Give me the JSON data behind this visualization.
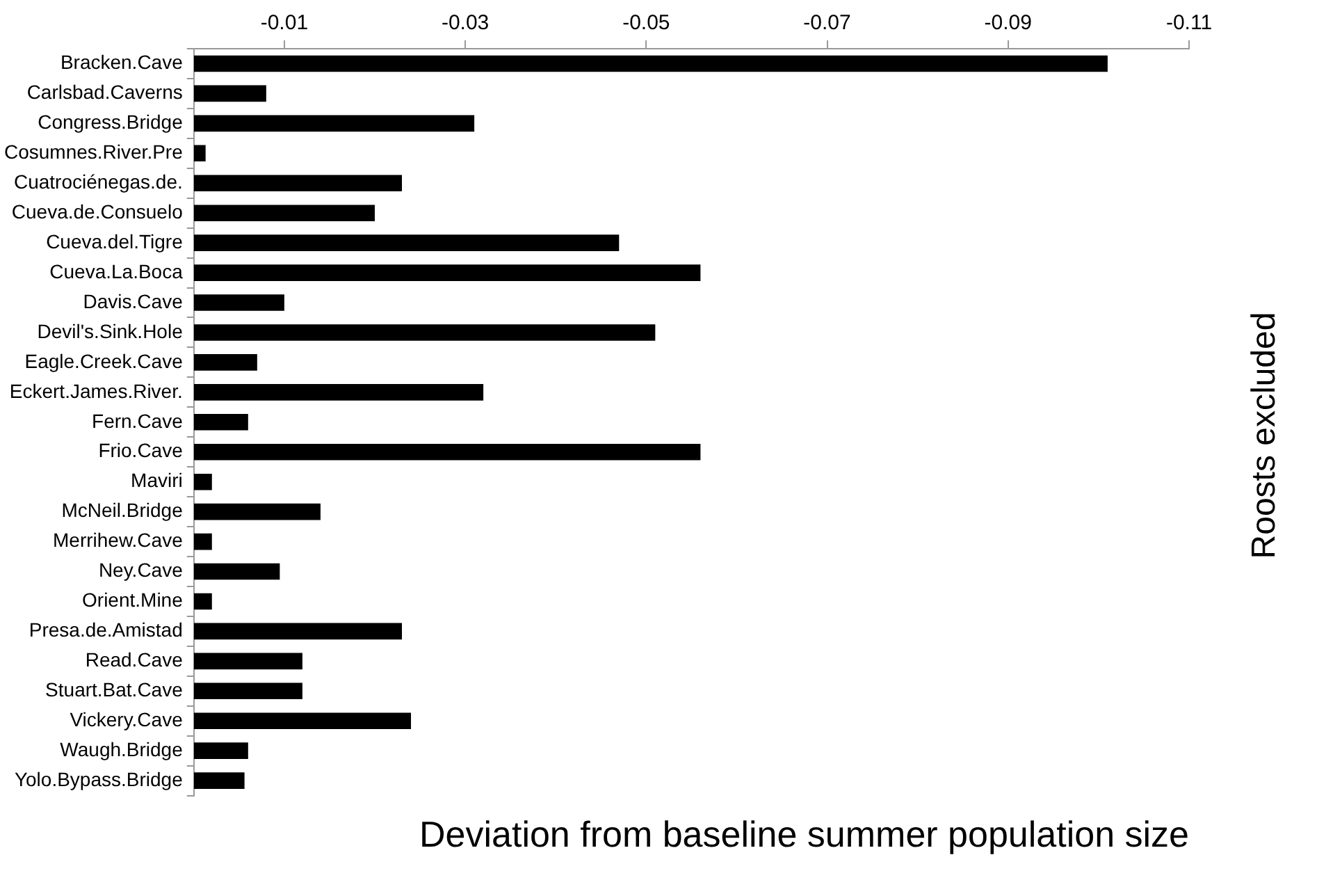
{
  "chart_data": {
    "type": "bar",
    "orientation": "horizontal",
    "xlabel": "Deviation from baseline summer population size",
    "ylabel": "Roosts excluded",
    "categories": [
      "Bracken.Cave",
      "Carlsbad.Caverns",
      "Congress.Bridge",
      "Cosumnes.River.Pre",
      "Cuatrociénegas.de.",
      "Cueva.de.Consuelo",
      "Cueva.del.Tigre",
      "Cueva.La.Boca",
      "Davis.Cave",
      "Devil's.Sink.Hole",
      "Eagle.Creek.Cave",
      "Eckert.James.River.",
      "Fern.Cave",
      "Frio.Cave",
      "Maviri",
      "McNeil.Bridge",
      "Merrihew.Cave",
      "Ney.Cave",
      "Orient.Mine",
      "Presa.de.Amistad",
      "Read.Cave",
      "Stuart.Bat.Cave",
      "Vickery.Cave",
      "Waugh.Bridge",
      "Yolo.Bypass.Bridge"
    ],
    "values": [
      -0.101,
      -0.008,
      -0.031,
      -0.0013,
      -0.023,
      -0.02,
      -0.047,
      -0.056,
      -0.01,
      -0.051,
      -0.007,
      -0.032,
      -0.006,
      -0.056,
      -0.002,
      -0.014,
      -0.002,
      -0.0095,
      -0.002,
      -0.023,
      -0.012,
      -0.012,
      -0.024,
      -0.006,
      -0.0056
    ],
    "color": "#000000",
    "xlim": [
      0,
      -0.11
    ],
    "xticks": [
      -0.01,
      -0.03,
      -0.05,
      -0.07,
      -0.09,
      -0.11
    ],
    "grid": false,
    "legend": false
  }
}
